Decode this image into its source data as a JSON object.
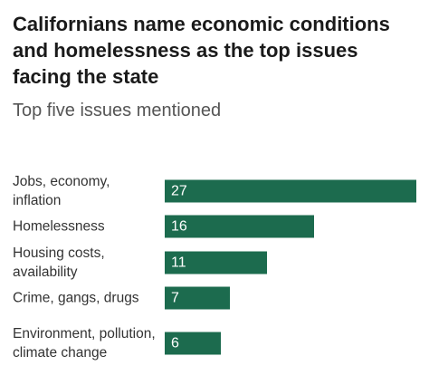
{
  "chart_data": {
    "type": "bar",
    "orientation": "horizontal",
    "title": "Californians name economic conditions and homelessness as the top issues facing the state",
    "subtitle": "Top five issues mentioned",
    "categories": [
      "Jobs, economy, inflation",
      "Homelessness",
      "Housing costs, availability",
      "Crime, gangs, drugs",
      "Environment, pollution, climate change"
    ],
    "values": [
      27,
      16,
      11,
      7,
      6
    ],
    "color": "#1c6b4e"
  }
}
